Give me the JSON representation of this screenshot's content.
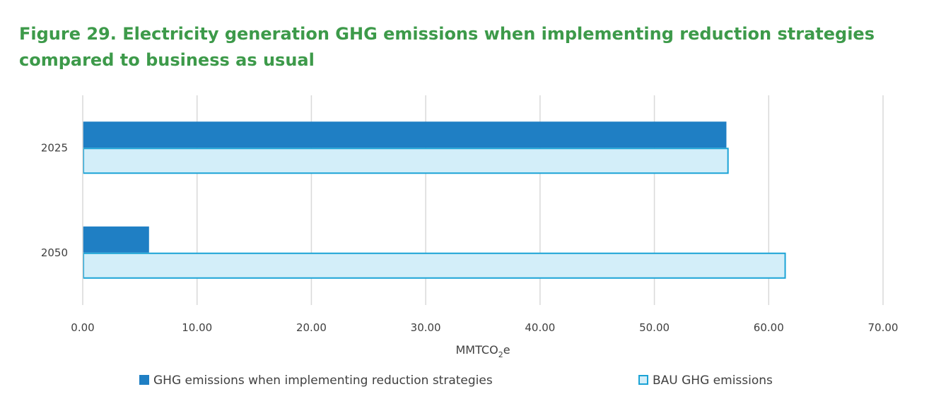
{
  "figure": {
    "title": "Figure 29. Electricity generation GHG emissions when implementing reduction strategies compared to business as usual"
  },
  "chart_data": {
    "type": "bar",
    "orientation": "horizontal",
    "title": "Figure 29. Electricity generation GHG emissions when implementing reduction strategies compared to business as usual",
    "xlabel": "MMTCO₂e",
    "ylabel": "",
    "categories": [
      "2025",
      "2050"
    ],
    "series": [
      {
        "name": "GHG emissions when implementing reduction strategies",
        "values": [
          56.3,
          5.8
        ],
        "fill": "#1f7fc4",
        "stroke": "#1f7fc4"
      },
      {
        "name": "BAU GHG emissions",
        "values": [
          56.5,
          61.5
        ],
        "fill": "#d3eef9",
        "stroke": "#1ba3d6"
      }
    ],
    "xlim": [
      0,
      70
    ],
    "xticks": [
      "0.00",
      "10.00",
      "20.00",
      "30.00",
      "40.00",
      "50.00",
      "60.00",
      "70.00"
    ],
    "grid": "vertical",
    "legend": "bottom"
  }
}
